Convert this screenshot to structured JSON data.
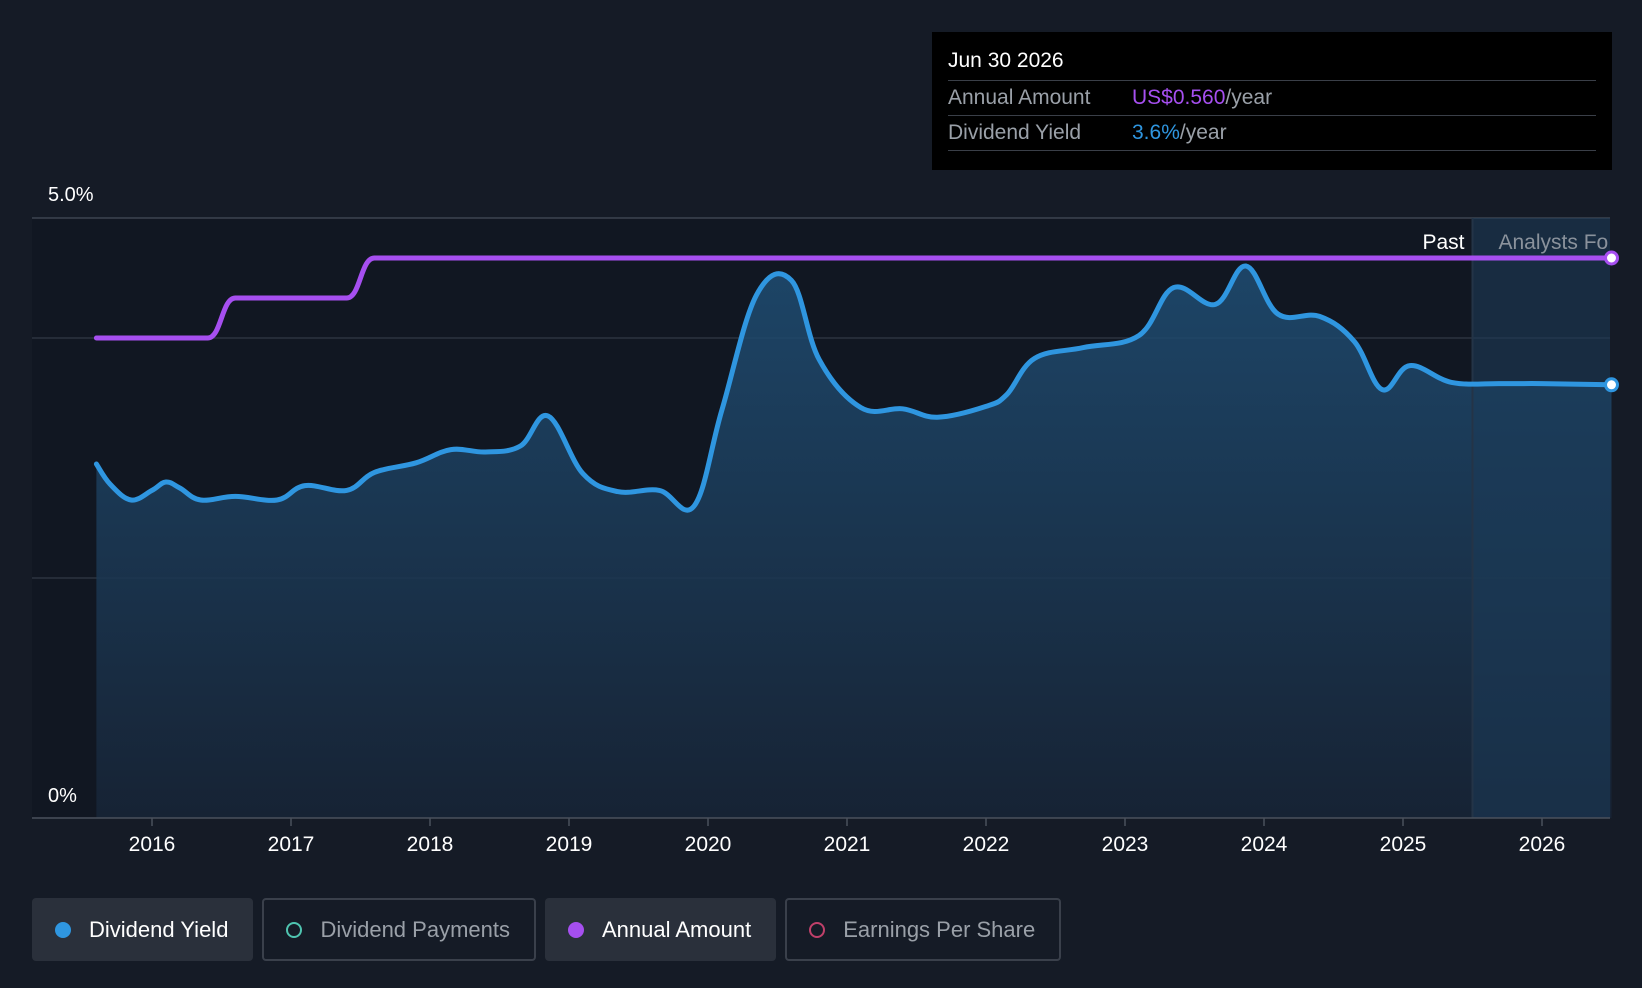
{
  "colors": {
    "background": "#151b26",
    "dividend_yield": "#2f96e0",
    "annual_amount": "#a64ff0",
    "dividend_payments": "#4fc4b0",
    "earnings_per_share": "#c0406a"
  },
  "tooltip": {
    "date": "Jun 30 2026",
    "annual_amount_label": "Annual Amount",
    "annual_amount_value": "US$0.560",
    "annual_amount_unit": "/year",
    "dividend_yield_label": "Dividend Yield",
    "dividend_yield_value": "3.6%",
    "dividend_yield_unit": "/year"
  },
  "chart_data": {
    "type": "line",
    "y_max_label": "5.0%",
    "y_min_label": "0%",
    "ylim": [
      0,
      5.0
    ],
    "grid": true,
    "past_label": "Past",
    "forecast_label": "Analysts Fo",
    "x_ticks": [
      "2016",
      "2017",
      "2018",
      "2019",
      "2020",
      "2021",
      "2022",
      "2023",
      "2024",
      "2025",
      "2026"
    ],
    "forecast_start": 2025.5,
    "series": [
      {
        "name": "Dividend Yield",
        "unit": "%",
        "points": [
          [
            2015.6,
            2.95
          ],
          [
            2015.7,
            2.78
          ],
          [
            2015.85,
            2.65
          ],
          [
            2016.0,
            2.73
          ],
          [
            2016.1,
            2.8
          ],
          [
            2016.2,
            2.75
          ],
          [
            2016.35,
            2.65
          ],
          [
            2016.6,
            2.68
          ],
          [
            2016.9,
            2.65
          ],
          [
            2017.1,
            2.77
          ],
          [
            2017.4,
            2.73
          ],
          [
            2017.6,
            2.88
          ],
          [
            2017.9,
            2.96
          ],
          [
            2018.15,
            3.07
          ],
          [
            2018.4,
            3.05
          ],
          [
            2018.65,
            3.1
          ],
          [
            2018.85,
            3.35
          ],
          [
            2019.1,
            2.87
          ],
          [
            2019.35,
            2.72
          ],
          [
            2019.65,
            2.73
          ],
          [
            2019.9,
            2.6
          ],
          [
            2020.1,
            3.4
          ],
          [
            2020.35,
            4.36
          ],
          [
            2020.6,
            4.48
          ],
          [
            2020.8,
            3.82
          ],
          [
            2021.1,
            3.42
          ],
          [
            2021.4,
            3.41
          ],
          [
            2021.65,
            3.34
          ],
          [
            2022.0,
            3.43
          ],
          [
            2022.15,
            3.53
          ],
          [
            2022.35,
            3.83
          ],
          [
            2022.7,
            3.92
          ],
          [
            2023.1,
            4.02
          ],
          [
            2023.35,
            4.42
          ],
          [
            2023.65,
            4.28
          ],
          [
            2023.87,
            4.6
          ],
          [
            2024.1,
            4.2
          ],
          [
            2024.4,
            4.18
          ],
          [
            2024.65,
            3.97
          ],
          [
            2024.85,
            3.57
          ],
          [
            2025.05,
            3.77
          ],
          [
            2025.35,
            3.63
          ],
          [
            2025.7,
            3.62
          ],
          [
            2026.0,
            3.62
          ],
          [
            2026.5,
            3.61
          ]
        ]
      },
      {
        "name": "Annual Amount",
        "unit": "US$/year",
        "points": [
          [
            2015.6,
            0.44
          ],
          [
            2016.4,
            0.44
          ],
          [
            2016.6,
            0.5
          ],
          [
            2017.4,
            0.5
          ],
          [
            2017.6,
            0.56
          ],
          [
            2026.5,
            0.56
          ]
        ],
        "scale_note": "plotted on secondary scale"
      }
    ]
  },
  "legend": {
    "items": [
      {
        "label": "Dividend Yield",
        "active": true
      },
      {
        "label": "Dividend Payments",
        "active": false
      },
      {
        "label": "Annual Amount",
        "active": true
      },
      {
        "label": "Earnings Per Share",
        "active": false
      }
    ]
  }
}
